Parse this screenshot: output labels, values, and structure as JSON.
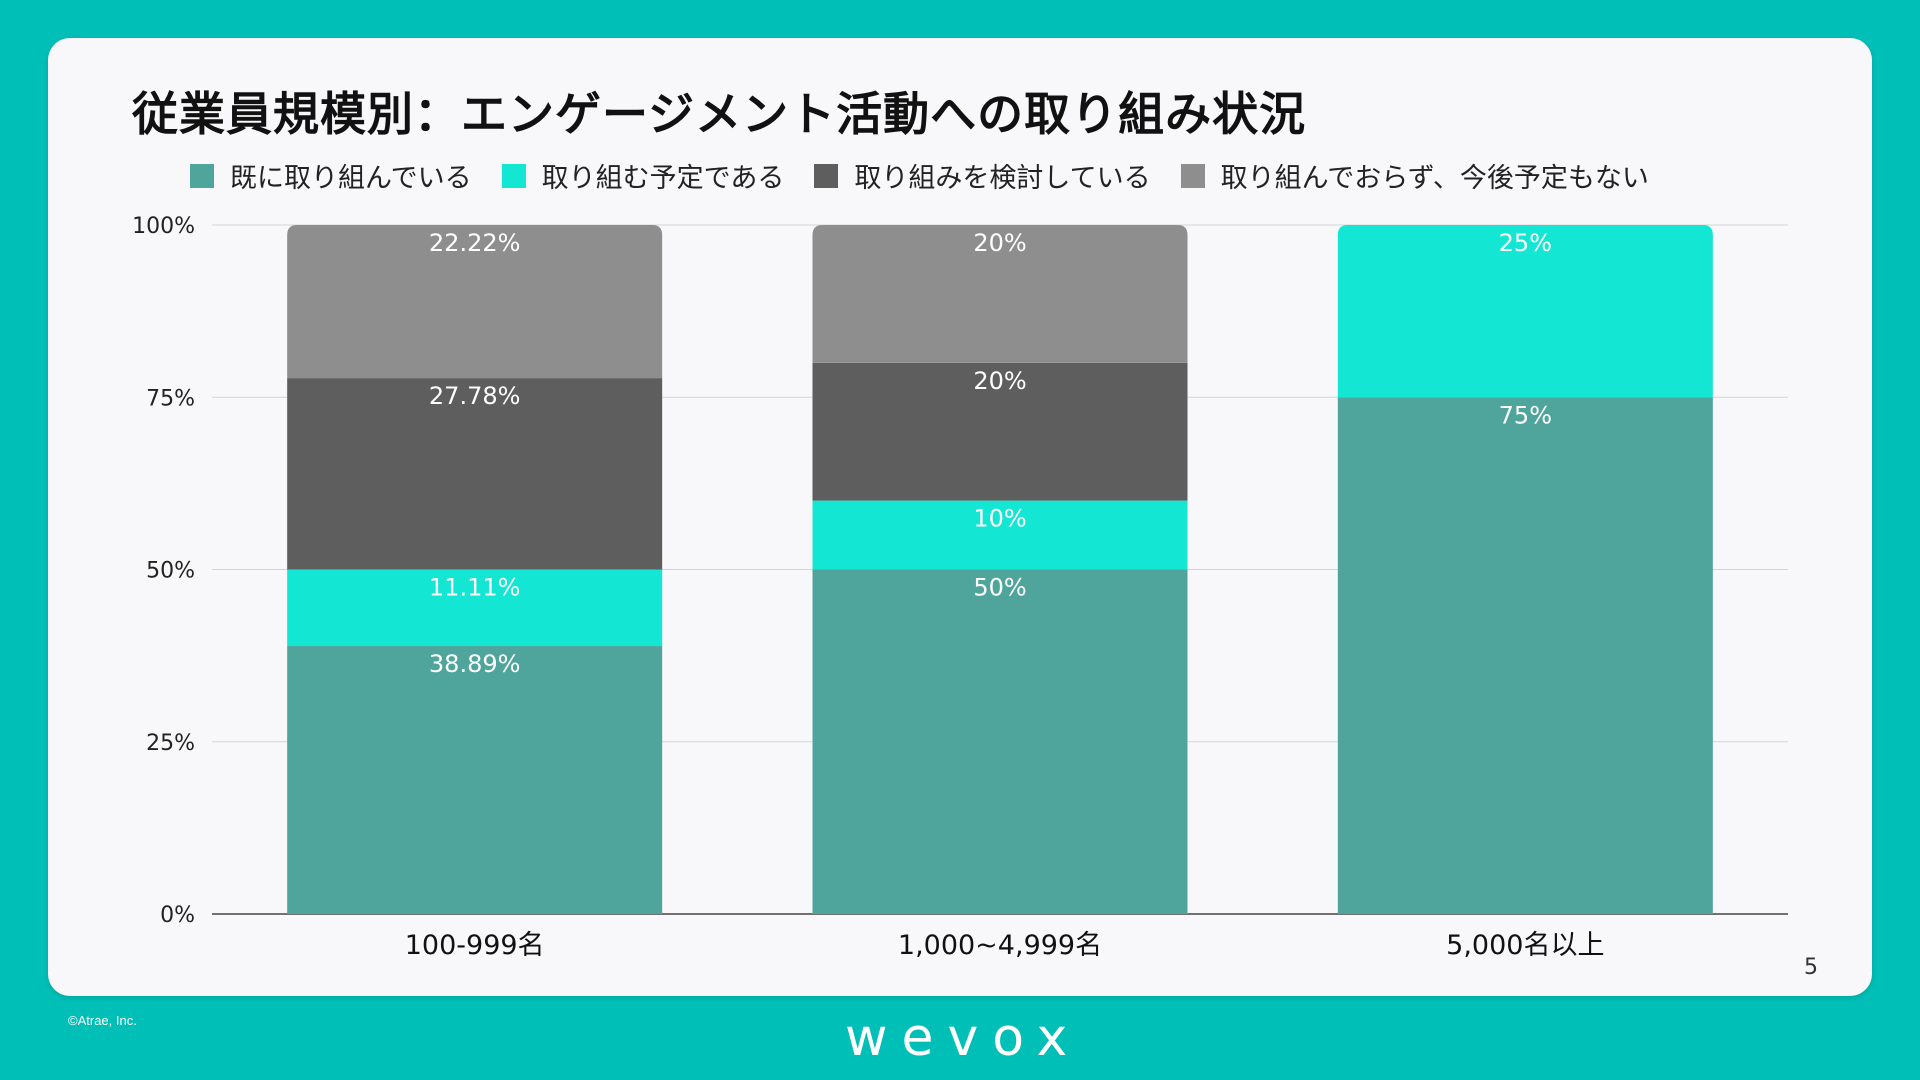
{
  "slide": {
    "title": "従業員規模別：エンゲージメント活動への取り組み状況",
    "page_number": "5",
    "copyright": "©Atrae, Inc.",
    "brand": "wevox"
  },
  "colors": {
    "background": "#00bfb7",
    "card": "#f8f8fb"
  },
  "chart_data": {
    "type": "bar",
    "stacked": true,
    "percent_stacked": true,
    "categories": [
      "100-999名",
      "1,000~4,999名",
      "5,000名以上"
    ],
    "series": [
      {
        "name": "既に取り組んでいる",
        "color": "#4fa59c",
        "values": [
          38.89,
          50,
          75
        ],
        "labels": [
          "38.89%",
          "50%",
          "75%"
        ]
      },
      {
        "name": "取り組む予定である",
        "color": "#13e6d3",
        "values": [
          11.11,
          10,
          25
        ],
        "labels": [
          "11.11%",
          "10%",
          "25%"
        ]
      },
      {
        "name": "取り組みを検討している",
        "color": "#5e5e5e",
        "values": [
          27.78,
          20,
          0
        ],
        "labels": [
          "27.78%",
          "20%",
          ""
        ]
      },
      {
        "name": "取り組んでおらず、今後予定もない",
        "color": "#8e8e8e",
        "values": [
          22.22,
          20,
          0
        ],
        "labels": [
          "22.22%",
          "20%",
          ""
        ]
      }
    ],
    "yticks": [
      "0%",
      "25%",
      "50%",
      "75%",
      "100%"
    ],
    "ylim": [
      0,
      100
    ],
    "xlabel": "",
    "ylabel": "",
    "grid": true,
    "legend": "top"
  }
}
